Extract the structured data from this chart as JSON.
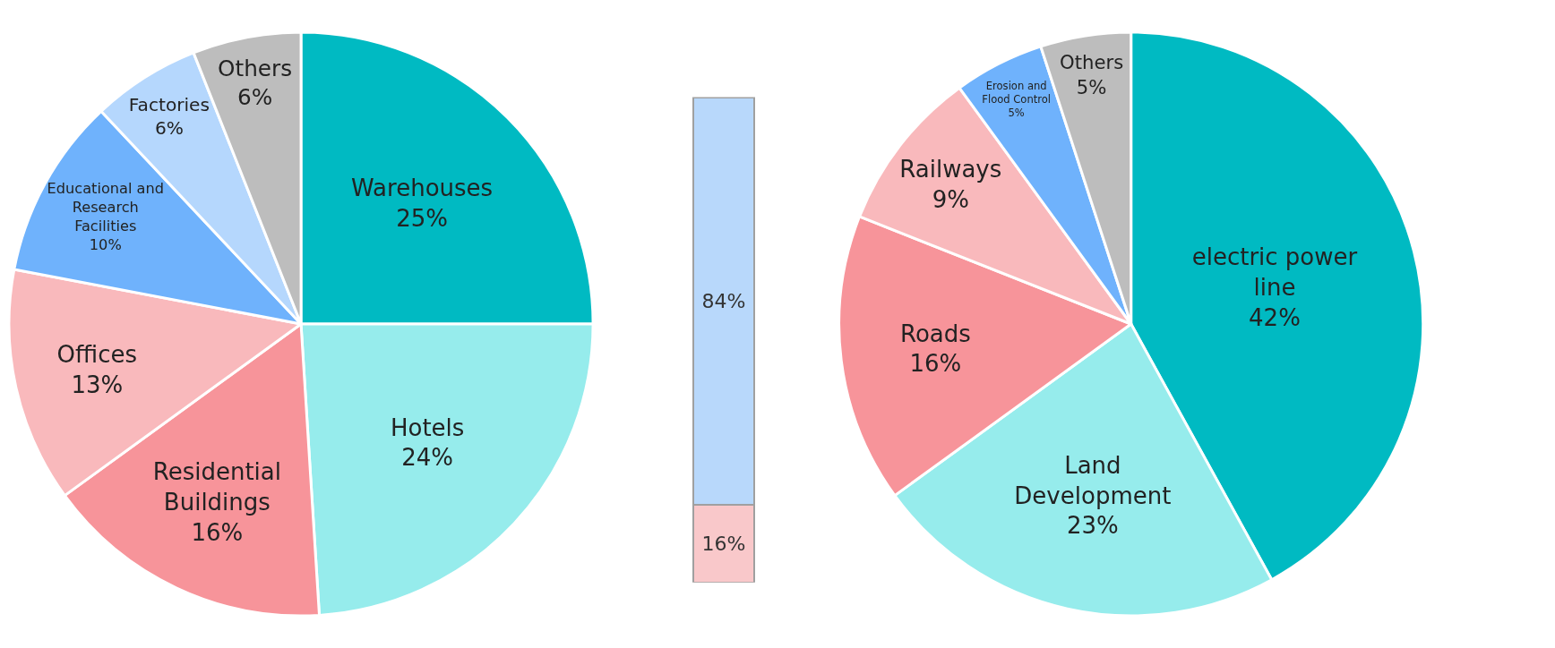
{
  "chart_data": [
    {
      "type": "pie",
      "categories": [
        "Warehouses",
        "Hotels",
        "Residential Buildings",
        "Offices",
        "Educational and Research Facilities",
        "Factories",
        "Others"
      ],
      "values": [
        25,
        24,
        16,
        13,
        10,
        6,
        6
      ],
      "value_labels": [
        "25%",
        "24%",
        "16%",
        "13%",
        "10%",
        "6%",
        "6%"
      ],
      "colors": [
        "#00bac2",
        "#96ecec",
        "#f7949a",
        "#f9b9bc",
        "#6fb2fc",
        "#b5d7fd",
        "#bdbdbd"
      ]
    },
    {
      "type": "bar",
      "stacked": true,
      "categories": [
        null
      ],
      "series": [
        {
          "color": "#f9c8ca",
          "values": [
            16
          ],
          "value_labels": [
            "16%"
          ]
        },
        {
          "color": "#b8d8fb",
          "values": [
            84
          ],
          "value_labels": [
            "84%"
          ]
        }
      ],
      "ylim": [
        0,
        100
      ],
      "tick_labels": false
    },
    {
      "type": "pie",
      "categories": [
        "electric power line",
        "Land Development",
        "Roads",
        "Railways",
        "Erosion and Flood Control",
        "Others"
      ],
      "values": [
        42,
        23,
        16,
        9,
        5,
        5
      ],
      "value_labels": [
        "42%",
        "23%",
        "16%",
        "9%",
        "5%",
        "5%"
      ],
      "colors": [
        "#00bac2",
        "#96ecec",
        "#f7949a",
        "#f9b9bc",
        "#6fb2fc",
        "#bdbdbd"
      ]
    }
  ]
}
